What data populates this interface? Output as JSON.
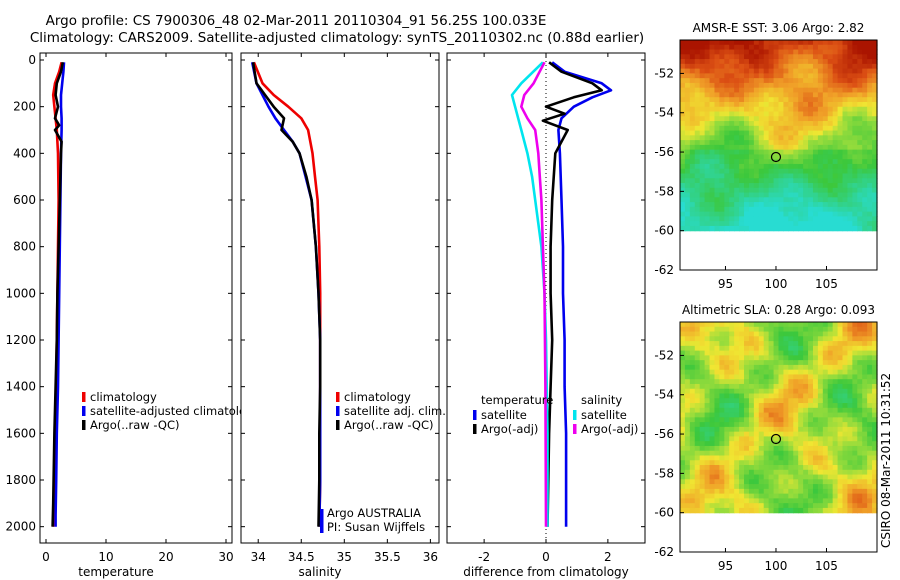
{
  "title": {
    "line1": "Argo profile: CS 7900306_48 02-Mar-2011 20110304_91 56.25S 100.033E",
    "line2": "Climatology: CARS2009. Satellite-adjusted climatology: synTS_20110302.nc (0.88d earlier)"
  },
  "side_label": "CSIRO 08-Mar-2011 10:31:52",
  "colors": {
    "climatology": "#ee0000",
    "satellite": "#0000ee",
    "argo": "#000000",
    "sat_sal": "#00e5ee",
    "argo_sal": "#ee00ee",
    "grid": "#000000"
  },
  "chart_data": [
    {
      "id": "temperature",
      "type": "line",
      "xlabel": "temperature",
      "ylabel": "",
      "xlim": [
        -1,
        31
      ],
      "ylim": [
        2070,
        -30
      ],
      "xticks": [
        "0",
        "10",
        "20",
        "30"
      ],
      "xtick_values": [
        0,
        10,
        20,
        30
      ],
      "yticks": [
        "0",
        "200",
        "400",
        "600",
        "800",
        "1000",
        "1200",
        "1400",
        "1600",
        "1800",
        "2000"
      ],
      "ytick_values": [
        0,
        200,
        400,
        600,
        800,
        1000,
        1200,
        1400,
        1600,
        1800,
        2000
      ],
      "legend": [
        "climatology",
        "satellite-adjusted climatology",
        "Argo(..raw -QC)"
      ],
      "series": [
        {
          "name": "climatology",
          "color": "#ee0000",
          "x": [
            2.6,
            2.2,
            1.5,
            1.2,
            1.4,
            1.6,
            1.8,
            2.0,
            2.1,
            2.0,
            1.9,
            1.8,
            1.7,
            1.5,
            1.4,
            1.3,
            1.2
          ],
          "y": [
            10,
            50,
            100,
            150,
            200,
            250,
            300,
            400,
            600,
            800,
            1000,
            1200,
            1400,
            1600,
            1800,
            1950,
            2000
          ]
        },
        {
          "name": "satellite-adjusted climatology",
          "color": "#0000ee",
          "x": [
            3.0,
            2.9,
            2.7,
            2.5,
            2.5,
            2.6,
            2.6,
            2.5,
            2.4,
            2.3,
            2.2,
            2.1,
            2.0,
            1.8,
            1.7,
            1.6,
            1.6
          ],
          "y": [
            10,
            50,
            100,
            150,
            200,
            250,
            300,
            400,
            600,
            800,
            1000,
            1200,
            1400,
            1600,
            1800,
            1950,
            2000
          ]
        },
        {
          "name": "Argo(..raw -QC)",
          "color": "#000000",
          "x": [
            2.8,
            2.5,
            1.8,
            1.6,
            2.0,
            1.5,
            2.2,
            1.5,
            2.6,
            2.5,
            2.3,
            2.1,
            1.9,
            1.8,
            1.6,
            1.4,
            1.2,
            1.1
          ],
          "y": [
            10,
            50,
            100,
            150,
            200,
            250,
            280,
            300,
            350,
            400,
            600,
            800,
            1000,
            1200,
            1400,
            1600,
            1900,
            2000
          ]
        }
      ]
    },
    {
      "id": "salinity",
      "type": "line",
      "xlabel": "salinity",
      "ylabel": "",
      "xlim": [
        33.8,
        36.1
      ],
      "ylim": [
        2070,
        -30
      ],
      "xticks": [
        "34",
        "34.5",
        "35",
        "35.5",
        "36"
      ],
      "xtick_values": [
        34,
        34.5,
        35,
        35.5,
        36
      ],
      "legend": [
        "climatology",
        "satellite adj. clim.",
        "Argo(..raw -QC)"
      ],
      "annotations": [
        "Argo AUSTRALIA",
        "PI: Susan Wijffels"
      ],
      "series": [
        {
          "name": "climatology",
          "color": "#ee0000",
          "x": [
            33.95,
            34.05,
            34.18,
            34.35,
            34.5,
            34.58,
            34.63,
            34.66,
            34.69,
            34.71,
            34.72,
            34.72,
            34.72,
            34.72,
            34.72,
            34.71
          ],
          "y": [
            10,
            100,
            150,
            200,
            250,
            300,
            400,
            500,
            600,
            800,
            1000,
            1200,
            1400,
            1600,
            1800,
            2000
          ]
        },
        {
          "name": "satellite adj. clim.",
          "color": "#0000ee",
          "x": [
            33.93,
            33.98,
            34.05,
            34.12,
            34.2,
            34.3,
            34.4,
            34.48,
            34.55,
            34.62,
            34.67,
            34.7,
            34.72,
            34.72,
            34.72,
            34.72,
            34.71
          ],
          "y": [
            10,
            100,
            150,
            200,
            250,
            300,
            350,
            400,
            500,
            600,
            800,
            1000,
            1200,
            1400,
            1600,
            1800,
            2000
          ]
        },
        {
          "name": "Argo(..raw -QC)",
          "color": "#000000",
          "x": [
            33.94,
            33.98,
            34.08,
            34.18,
            34.3,
            34.27,
            34.4,
            34.48,
            34.56,
            34.62,
            34.67,
            34.7,
            34.72,
            34.72,
            34.71,
            34.71,
            34.7
          ],
          "y": [
            10,
            100,
            150,
            200,
            250,
            300,
            350,
            400,
            500,
            600,
            800,
            1000,
            1200,
            1400,
            1600,
            1800,
            2000
          ]
        }
      ]
    },
    {
      "id": "difference",
      "type": "line",
      "xlabel": "difference from climatology",
      "ylabel": "",
      "xlim": [
        -3.2,
        3.2
      ],
      "ylim": [
        2070,
        -30
      ],
      "xticks": [
        "-2",
        "0",
        "2"
      ],
      "xtick_values": [
        -2,
        0,
        2
      ],
      "legend_groups": [
        {
          "title": "temperature",
          "entries": [
            "satellite",
            "Argo(-adj)"
          ]
        },
        {
          "title": "salinity",
          "entries": [
            "satellite",
            "Argo(-adj)"
          ]
        }
      ],
      "series": [
        {
          "name": "temperature satellite",
          "color": "#0000ee",
          "x": [
            0.2,
            0.6,
            1.8,
            2.1,
            1.5,
            0.9,
            0.5,
            0.4,
            0.45,
            0.5,
            0.55,
            0.55,
            0.6,
            0.6,
            0.65,
            0.65,
            0.65
          ],
          "y": [
            10,
            50,
            100,
            130,
            160,
            200,
            250,
            300,
            400,
            600,
            800,
            1000,
            1200,
            1400,
            1600,
            1800,
            2000
          ]
        },
        {
          "name": "temperature Argo(-adj)",
          "color": "#000000",
          "x": [
            0.1,
            0.5,
            1.5,
            1.8,
            0.9,
            0.0,
            0.6,
            -0.1,
            0.7,
            0.3,
            0.2,
            0.15,
            0.15,
            0.2,
            0.15,
            0.1,
            0.05
          ],
          "y": [
            10,
            50,
            100,
            130,
            160,
            200,
            230,
            260,
            300,
            400,
            600,
            800,
            1000,
            1200,
            1400,
            1600,
            2000
          ]
        },
        {
          "name": "salinity satellite",
          "color": "#00e5ee",
          "x": [
            -0.1,
            -0.8,
            -1.1,
            -1.0,
            -0.8,
            -0.6,
            -0.45,
            -0.35,
            -0.25,
            -0.15,
            -0.05,
            0.0,
            0.05,
            0.05
          ],
          "y": [
            10,
            100,
            150,
            200,
            300,
            400,
            500,
            600,
            700,
            800,
            1000,
            1200,
            1600,
            2000
          ]
        },
        {
          "name": "salinity Argo(-adj)",
          "color": "#ee00ee",
          "x": [
            -0.05,
            -0.4,
            -0.7,
            -0.8,
            -0.6,
            -0.35,
            -0.25,
            -0.2,
            -0.15,
            -0.1,
            -0.05,
            -0.02,
            0.0
          ],
          "y": [
            10,
            100,
            150,
            200,
            250,
            300,
            400,
            500,
            600,
            800,
            1000,
            1400,
            2000
          ]
        }
      ]
    },
    {
      "id": "sst_map",
      "type": "heatmap",
      "title": "AMSR-E SST: 3.06 Argo: 2.82",
      "xlim": [
        90.5,
        110
      ],
      "ylim": [
        -62,
        -50.3
      ],
      "data_ylim": [
        -60,
        -50.3
      ],
      "xticks": [
        "95",
        "100",
        "105"
      ],
      "xtick_values": [
        95,
        100,
        105
      ],
      "yticks": [
        "-52",
        "-54",
        "-56",
        "-58",
        "-60",
        "-62"
      ],
      "ytick_values": [
        -52,
        -54,
        -56,
        -58,
        -60,
        -62
      ],
      "marker": {
        "lon": 100.0,
        "lat": -56.25
      }
    },
    {
      "id": "sla_map",
      "type": "heatmap",
      "title": "Altimetric SLA: 0.28 Argo: 0.093",
      "xlim": [
        90.5,
        110
      ],
      "ylim": [
        -62,
        -50.3
      ],
      "data_ylim": [
        -60,
        -50.3
      ],
      "xticks": [
        "95",
        "100",
        "105"
      ],
      "xtick_values": [
        95,
        100,
        105
      ],
      "yticks": [
        "-52",
        "-54",
        "-56",
        "-58",
        "-60",
        "-62"
      ],
      "ytick_values": [
        -52,
        -54,
        -56,
        -58,
        -60,
        -62
      ],
      "marker": {
        "lon": 100.0,
        "lat": -56.25
      }
    }
  ]
}
